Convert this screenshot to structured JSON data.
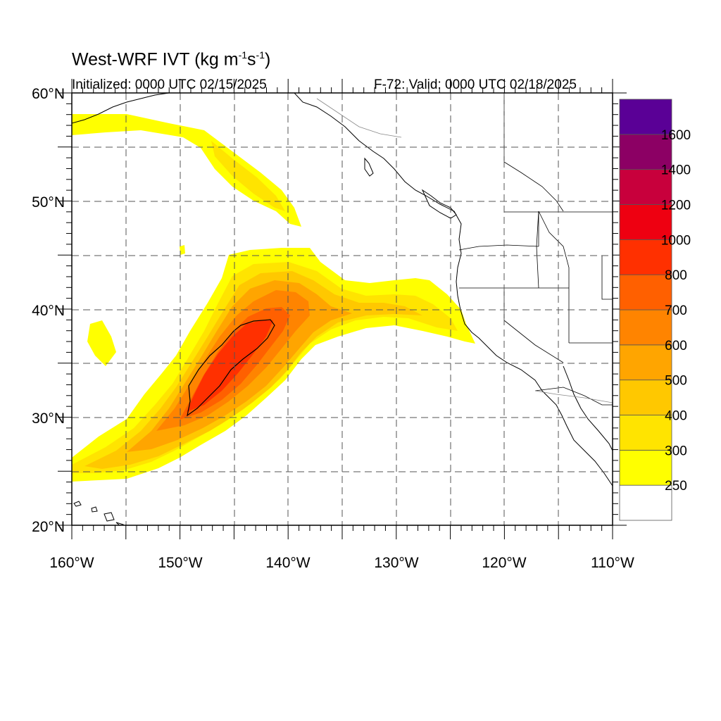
{
  "title": {
    "base": "West-WRF IVT (kg m",
    "sup1": "-1",
    "mid": "s",
    "sup2": "-1",
    "end": ")"
  },
  "subtitle_left": "Initialized: 0000 UTC 02/15/2025",
  "subtitle_right": "F-72: Valid: 0000 UTC 02/18/2025",
  "lat_labels": [
    "60°N",
    "50°N",
    "40°N",
    "30°N",
    "20°N"
  ],
  "lon_labels": [
    "160°W",
    "150°W",
    "140°W",
    "130°W",
    "120°W",
    "110°W"
  ],
  "map_extent": {
    "lon": [
      -160,
      -110
    ],
    "lat": [
      20,
      60
    ]
  },
  "colorbar": {
    "levels": [
      "250",
      "300",
      "400",
      "500",
      "600",
      "700",
      "800",
      "1000",
      "1200",
      "1400",
      "1600"
    ],
    "colors": [
      "#ffffff",
      "#ffff00",
      "#ffe400",
      "#ffc800",
      "#ffa500",
      "#ff8400",
      "#ff6000",
      "#ff3000",
      "#ee0011",
      "#c8003c",
      "#8c0064",
      "#5a0096"
    ]
  },
  "ivt_palette": {
    "c250": "#ffff00",
    "c300": "#ffe400",
    "c400": "#ffc800",
    "c500": "#ffa500",
    "c600": "#ff8400",
    "c700": "#ff6000",
    "c800": "#ff3000"
  }
}
